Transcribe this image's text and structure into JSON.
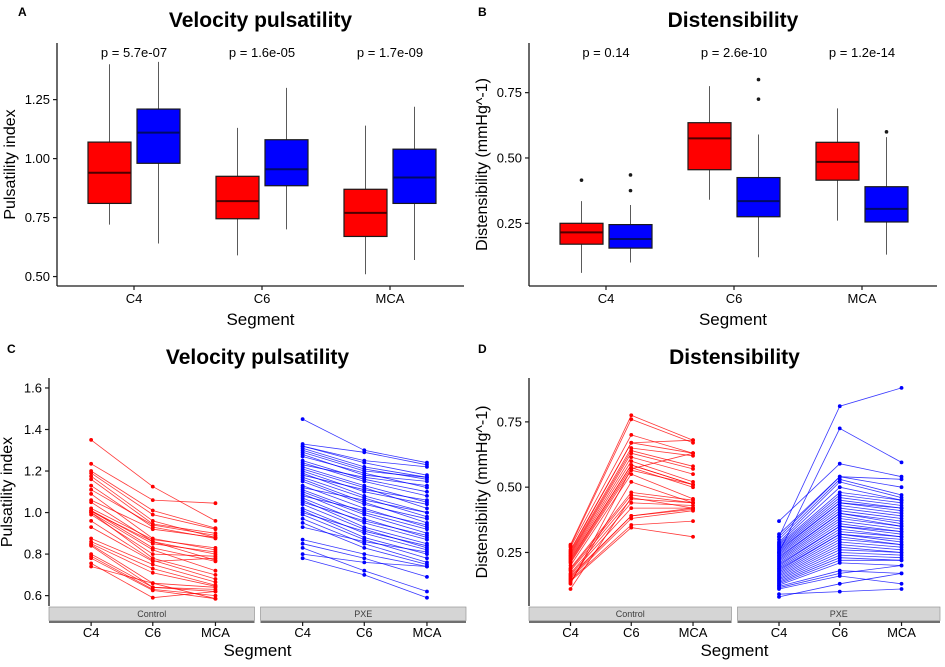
{
  "figure": {
    "background": "#FFFFFF"
  },
  "colors": {
    "control": "#FF0000",
    "pxe": "#0000FF",
    "box_border": "#1A1A1A",
    "whisker": "#5A5A5A",
    "median_control": "#4D0000",
    "median_pxe": "#000A66",
    "outlier": "#1A1A1A",
    "strip_bg": "#D5D5D5",
    "strip_border": "#969696",
    "strip_text": "#3D3D3D",
    "axis": "#1A1A1A",
    "text": "#000000"
  },
  "chart_data": [
    {
      "panel": "A",
      "type": "grouped-boxplot",
      "title": "Velocity pulsatility",
      "xlabel": "Segment",
      "ylabel": "Pulsatility index",
      "categories": [
        "C4",
        "C6",
        "MCA"
      ],
      "group_names": [
        "Control",
        "PXE"
      ],
      "ylim": [
        0.46,
        1.49
      ],
      "yticks": [
        {
          "v": 0.5,
          "label": "0.50"
        },
        {
          "v": 0.75,
          "label": "0.75"
        },
        {
          "v": 1.0,
          "label": "1.00"
        },
        {
          "v": 1.25,
          "label": "1.25"
        }
      ],
      "p_values": [
        "p = 5.7e-07",
        "p = 1.6e-05",
        "p = 1.7e-09"
      ],
      "boxes": [
        {
          "category": "C4",
          "group": "Control",
          "color_key": "control",
          "min": 0.72,
          "q1": 0.81,
          "median": 0.94,
          "q3": 1.07,
          "max": 1.4,
          "outliers": []
        },
        {
          "category": "C4",
          "group": "PXE",
          "color_key": "pxe",
          "min": 0.64,
          "q1": 0.98,
          "median": 1.11,
          "q3": 1.21,
          "max": 1.41,
          "outliers": []
        },
        {
          "category": "C6",
          "group": "Control",
          "color_key": "control",
          "min": 0.59,
          "q1": 0.745,
          "median": 0.82,
          "q3": 0.925,
          "max": 1.13,
          "outliers": []
        },
        {
          "category": "C6",
          "group": "PXE",
          "color_key": "pxe",
          "min": 0.7,
          "q1": 0.885,
          "median": 0.955,
          "q3": 1.08,
          "max": 1.3,
          "outliers": []
        },
        {
          "category": "MCA",
          "group": "Control",
          "color_key": "control",
          "min": 0.51,
          "q1": 0.67,
          "median": 0.77,
          "q3": 0.87,
          "max": 1.14,
          "outliers": []
        },
        {
          "category": "MCA",
          "group": "PXE",
          "color_key": "pxe",
          "min": 0.57,
          "q1": 0.81,
          "median": 0.92,
          "q3": 1.04,
          "max": 1.22,
          "outliers": []
        }
      ]
    },
    {
      "panel": "B",
      "type": "grouped-boxplot",
      "title": "Distensibility",
      "xlabel": "Segment",
      "ylabel": "Distensibility (mmHg^-1)",
      "categories": [
        "C4",
        "C6",
        "MCA"
      ],
      "group_names": [
        "Control",
        "PXE"
      ],
      "ylim": [
        0.01,
        0.94
      ],
      "yticks": [
        {
          "v": 0.25,
          "label": "0.25"
        },
        {
          "v": 0.5,
          "label": "0.50"
        },
        {
          "v": 0.75,
          "label": "0.75"
        }
      ],
      "p_values": [
        "p = 0.14",
        "p = 2.6e-10",
        "p = 1.2e-14"
      ],
      "boxes": [
        {
          "category": "C4",
          "group": "Control",
          "color_key": "control",
          "min": 0.06,
          "q1": 0.17,
          "median": 0.215,
          "q3": 0.25,
          "max": 0.335,
          "outliers": [
            0.415
          ]
        },
        {
          "category": "C4",
          "group": "PXE",
          "color_key": "pxe",
          "min": 0.1,
          "q1": 0.155,
          "median": 0.19,
          "q3": 0.245,
          "max": 0.32,
          "outliers": [
            0.375,
            0.435
          ]
        },
        {
          "category": "C6",
          "group": "Control",
          "color_key": "control",
          "min": 0.34,
          "q1": 0.455,
          "median": 0.575,
          "q3": 0.635,
          "max": 0.775,
          "outliers": []
        },
        {
          "category": "C6",
          "group": "PXE",
          "color_key": "pxe",
          "min": 0.12,
          "q1": 0.275,
          "median": 0.335,
          "q3": 0.425,
          "max": 0.59,
          "outliers": [
            0.725,
            0.8
          ]
        },
        {
          "category": "MCA",
          "group": "Control",
          "color_key": "control",
          "min": 0.26,
          "q1": 0.415,
          "median": 0.485,
          "q3": 0.56,
          "max": 0.69,
          "outliers": []
        },
        {
          "category": "MCA",
          "group": "PXE",
          "color_key": "pxe",
          "min": 0.13,
          "q1": 0.255,
          "median": 0.305,
          "q3": 0.39,
          "max": 0.58,
          "outliers": [
            0.6
          ]
        }
      ]
    },
    {
      "panel": "C",
      "type": "spaghetti",
      "title": "Velocity pulsatility",
      "xlabel": "Segment",
      "ylabel": "Pulsatility index",
      "categories": [
        "C4",
        "C6",
        "MCA"
      ],
      "ylim": [
        0.55,
        1.648
      ],
      "yticks": [
        {
          "v": 0.6,
          "label": "0.6"
        },
        {
          "v": 0.8,
          "label": "0.8"
        },
        {
          "v": 1.0,
          "label": "1.0"
        },
        {
          "v": 1.2,
          "label": "1.2"
        },
        {
          "v": 1.4,
          "label": "1.4"
        },
        {
          "v": 1.6,
          "label": "1.6"
        }
      ],
      "facets": [
        {
          "name": "Control",
          "color_key": "control",
          "lines": [
            [
              1.35,
              1.125,
              0.96
            ],
            [
              1.235,
              1.06,
              1.045
            ],
            [
              1.2,
              1.01,
              0.925
            ],
            [
              1.19,
              0.99,
              0.92
            ],
            [
              1.175,
              0.96,
              0.88
            ],
            [
              1.16,
              0.945,
              0.9
            ],
            [
              1.13,
              0.93,
              0.875
            ],
            [
              1.11,
              0.94,
              0.89
            ],
            [
              1.09,
              0.875,
              0.82
            ],
            [
              1.06,
              0.92,
              0.88
            ],
            [
              1.05,
              0.86,
              0.77
            ],
            [
              1.02,
              0.87,
              0.83
            ],
            [
              1.01,
              0.85,
              0.81
            ],
            [
              1.01,
              0.83,
              0.765
            ],
            [
              1.005,
              0.86,
              0.8
            ],
            [
              1.0,
              0.82,
              0.72
            ],
            [
              1.0,
              0.78,
              0.7
            ],
            [
              0.99,
              0.8,
              0.79
            ],
            [
              0.96,
              0.77,
              0.68
            ],
            [
              0.93,
              0.765,
              0.78
            ],
            [
              0.875,
              0.75,
              0.665
            ],
            [
              0.86,
              0.73,
              0.65
            ],
            [
              0.85,
              0.71,
              0.645
            ],
            [
              0.845,
              0.66,
              0.64
            ],
            [
              0.84,
              0.64,
              0.63
            ],
            [
              0.8,
              0.64,
              0.62
            ],
            [
              0.79,
              0.63,
              0.6
            ],
            [
              0.78,
              0.625,
              0.585
            ],
            [
              0.755,
              0.59,
              0.62
            ],
            [
              0.74,
              0.66,
              0.585
            ]
          ]
        },
        {
          "name": "PXE",
          "color_key": "pxe",
          "lines": [
            [
              1.45,
              1.3,
              1.24
            ],
            [
              1.33,
              1.29,
              1.23
            ],
            [
              1.32,
              1.25,
              1.22
            ],
            [
              1.32,
              1.24,
              1.18
            ],
            [
              1.31,
              1.22,
              1.17
            ],
            [
              1.3,
              1.21,
              1.16
            ],
            [
              1.29,
              1.2,
              1.17
            ],
            [
              1.28,
              1.18,
              1.15
            ],
            [
              1.27,
              1.19,
              1.12
            ],
            [
              1.25,
              1.16,
              1.1
            ],
            [
              1.24,
              1.15,
              1.08
            ],
            [
              1.23,
              1.17,
              1.13
            ],
            [
              1.22,
              1.13,
              1.05
            ],
            [
              1.21,
              1.12,
              1.02
            ],
            [
              1.2,
              1.1,
              1.04
            ],
            [
              1.19,
              1.08,
              1.0
            ],
            [
              1.18,
              1.11,
              1.06
            ],
            [
              1.17,
              1.07,
              0.98
            ],
            [
              1.16,
              1.05,
              0.95
            ],
            [
              1.15,
              1.04,
              0.97
            ],
            [
              1.13,
              1.02,
              0.93
            ],
            [
              1.12,
              1.06,
              1.0
            ],
            [
              1.11,
              1.0,
              0.92
            ],
            [
              1.1,
              0.99,
              0.9
            ],
            [
              1.09,
              0.97,
              0.88
            ],
            [
              1.08,
              1.01,
              0.94
            ],
            [
              1.07,
              0.95,
              0.87
            ],
            [
              1.06,
              0.93,
              0.85
            ],
            [
              1.05,
              0.96,
              0.89
            ],
            [
              1.04,
              0.92,
              0.83
            ],
            [
              1.02,
              0.9,
              0.82
            ],
            [
              1.01,
              0.88,
              0.8
            ],
            [
              1.0,
              0.91,
              0.84
            ],
            [
              0.99,
              0.87,
              0.78
            ],
            [
              0.97,
              0.85,
              0.76
            ],
            [
              0.95,
              0.83,
              0.75
            ],
            [
              0.93,
              0.86,
              0.81
            ],
            [
              0.87,
              0.8,
              0.74
            ],
            [
              0.85,
              0.78,
              0.69
            ],
            [
              0.83,
              0.72,
              0.62
            ],
            [
              0.8,
              0.76,
              0.74
            ],
            [
              0.78,
              0.7,
              0.59
            ]
          ]
        }
      ]
    },
    {
      "panel": "D",
      "type": "spaghetti",
      "title": "Distensibility",
      "xlabel": "Segment",
      "ylabel": "Distensibility (mmHg^-1)",
      "categories": [
        "C4",
        "C6",
        "MCA"
      ],
      "ylim": [
        0.045,
        0.918
      ],
      "yticks": [
        {
          "v": 0.25,
          "label": "0.25"
        },
        {
          "v": 0.5,
          "label": "0.50"
        },
        {
          "v": 0.75,
          "label": "0.75"
        }
      ],
      "facets": [
        {
          "name": "Control",
          "color_key": "control",
          "lines": [
            [
              0.28,
              0.775,
              0.68
            ],
            [
              0.275,
              0.76,
              0.67
            ],
            [
              0.27,
              0.7,
              0.63
            ],
            [
              0.26,
              0.67,
              0.68
            ],
            [
              0.255,
              0.67,
              0.63
            ],
            [
              0.25,
              0.65,
              0.62
            ],
            [
              0.245,
              0.64,
              0.58
            ],
            [
              0.24,
              0.63,
              0.57
            ],
            [
              0.235,
              0.615,
              0.55
            ],
            [
              0.23,
              0.6,
              0.52
            ],
            [
              0.225,
              0.585,
              0.51
            ],
            [
              0.22,
              0.585,
              0.51
            ],
            [
              0.215,
              0.575,
              0.5
            ],
            [
              0.21,
              0.565,
              0.51
            ],
            [
              0.2,
              0.55,
              0.455
            ],
            [
              0.19,
              0.48,
              0.45
            ],
            [
              0.185,
              0.47,
              0.44
            ],
            [
              0.18,
              0.455,
              0.44
            ],
            [
              0.17,
              0.44,
              0.43
            ],
            [
              0.165,
              0.42,
              0.42
            ],
            [
              0.16,
              0.39,
              0.42
            ],
            [
              0.155,
              0.39,
              0.415
            ],
            [
              0.15,
              0.38,
              0.41
            ],
            [
              0.145,
              0.355,
              0.37
            ],
            [
              0.14,
              0.345,
              0.31
            ],
            [
              0.135,
              0.52,
              0.44
            ],
            [
              0.13,
              0.57,
              0.63
            ],
            [
              0.11,
              0.46,
              0.42
            ]
          ]
        },
        {
          "name": "PXE",
          "color_key": "pxe",
          "lines": [
            [
              0.31,
              0.81,
              0.88
            ],
            [
              0.25,
              0.725,
              0.595
            ],
            [
              0.37,
              0.59,
              0.54
            ],
            [
              0.32,
              0.54,
              0.53
            ],
            [
              0.31,
              0.54,
              0.5
            ],
            [
              0.3,
              0.53,
              0.47
            ],
            [
              0.29,
              0.52,
              0.46
            ],
            [
              0.285,
              0.5,
              0.45
            ],
            [
              0.28,
              0.48,
              0.45
            ],
            [
              0.275,
              0.47,
              0.44
            ],
            [
              0.27,
              0.46,
              0.43
            ],
            [
              0.265,
              0.45,
              0.42
            ],
            [
              0.26,
              0.44,
              0.42
            ],
            [
              0.255,
              0.44,
              0.41
            ],
            [
              0.25,
              0.43,
              0.4
            ],
            [
              0.245,
              0.42,
              0.39
            ],
            [
              0.24,
              0.41,
              0.38
            ],
            [
              0.235,
              0.4,
              0.37
            ],
            [
              0.23,
              0.4,
              0.36
            ],
            [
              0.225,
              0.39,
              0.35
            ],
            [
              0.22,
              0.38,
              0.35
            ],
            [
              0.215,
              0.37,
              0.34
            ],
            [
              0.21,
              0.36,
              0.33
            ],
            [
              0.205,
              0.35,
              0.33
            ],
            [
              0.2,
              0.35,
              0.32
            ],
            [
              0.195,
              0.34,
              0.31
            ],
            [
              0.19,
              0.33,
              0.31
            ],
            [
              0.185,
              0.32,
              0.3
            ],
            [
              0.18,
              0.32,
              0.29
            ],
            [
              0.175,
              0.31,
              0.28
            ],
            [
              0.17,
              0.3,
              0.28
            ],
            [
              0.165,
              0.29,
              0.27
            ],
            [
              0.16,
              0.28,
              0.26
            ],
            [
              0.155,
              0.27,
              0.25
            ],
            [
              0.15,
              0.26,
              0.25
            ],
            [
              0.145,
              0.25,
              0.24
            ],
            [
              0.14,
              0.24,
              0.23
            ],
            [
              0.135,
              0.23,
              0.22
            ],
            [
              0.13,
              0.22,
              0.22
            ],
            [
              0.125,
              0.21,
              0.2
            ],
            [
              0.12,
              0.18,
              0.17
            ],
            [
              0.115,
              0.17,
              0.2
            ],
            [
              0.11,
              0.16,
              0.13
            ],
            [
              0.09,
              0.1,
              0.11
            ],
            [
              0.08,
              0.13,
              0.17
            ]
          ]
        }
      ]
    }
  ]
}
